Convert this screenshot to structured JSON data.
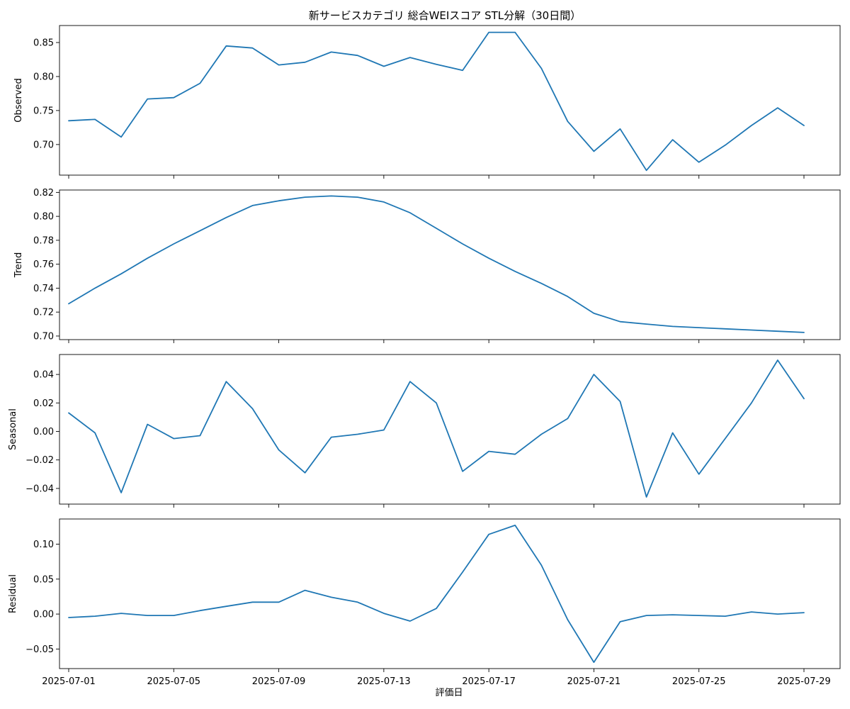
{
  "chart_data": {
    "type": "line",
    "title": "新サービスカテゴリ 総合WEIスコア STL分解（30日間）",
    "xlabel": "評価日",
    "color": "#1f77b4",
    "x": [
      "2025-07-01",
      "2025-07-02",
      "2025-07-03",
      "2025-07-04",
      "2025-07-05",
      "2025-07-06",
      "2025-07-07",
      "2025-07-08",
      "2025-07-09",
      "2025-07-10",
      "2025-07-11",
      "2025-07-12",
      "2025-07-13",
      "2025-07-14",
      "2025-07-15",
      "2025-07-16",
      "2025-07-17",
      "2025-07-18",
      "2025-07-19",
      "2025-07-20",
      "2025-07-21",
      "2025-07-22",
      "2025-07-23",
      "2025-07-24",
      "2025-07-25",
      "2025-07-26",
      "2025-07-27",
      "2025-07-28",
      "2025-07-29"
    ],
    "x_tick_labels": [
      "2025-07-01",
      "2025-07-05",
      "2025-07-09",
      "2025-07-13",
      "2025-07-17",
      "2025-07-21",
      "2025-07-25",
      "2025-07-29"
    ],
    "panels": [
      {
        "ylabel": "Observed",
        "ylim": [
          0.655,
          0.875
        ],
        "yticks": [
          0.7,
          0.75,
          0.8,
          0.85
        ],
        "ytick_labels": [
          "0.70",
          "0.75",
          "0.80",
          "0.85"
        ],
        "values": [
          0.735,
          0.737,
          0.711,
          0.767,
          0.769,
          0.79,
          0.845,
          0.842,
          0.817,
          0.821,
          0.836,
          0.831,
          0.815,
          0.828,
          0.818,
          0.809,
          0.865,
          0.865,
          0.812,
          0.734,
          0.69,
          0.723,
          0.662,
          0.707,
          0.674,
          0.699,
          0.728,
          0.754,
          0.728
        ]
      },
      {
        "ylabel": "Trend",
        "ylim": [
          0.697,
          0.822
        ],
        "yticks": [
          0.7,
          0.72,
          0.74,
          0.76,
          0.78,
          0.8,
          0.82
        ],
        "ytick_labels": [
          "0.70",
          "0.72",
          "0.74",
          "0.76",
          "0.78",
          "0.80",
          "0.82"
        ],
        "values": [
          0.727,
          0.74,
          0.752,
          0.765,
          0.777,
          0.788,
          0.799,
          0.809,
          0.813,
          0.816,
          0.817,
          0.816,
          0.812,
          0.803,
          0.79,
          0.777,
          0.765,
          0.754,
          0.744,
          0.733,
          0.719,
          0.712,
          0.71,
          0.708,
          0.707,
          0.706,
          0.705,
          0.704,
          0.703
        ]
      },
      {
        "ylabel": "Seasonal",
        "ylim": [
          -0.051,
          0.054
        ],
        "yticks": [
          -0.04,
          -0.02,
          0.0,
          0.02,
          0.04
        ],
        "ytick_labels": [
          "−0.04",
          "−0.02",
          "0.00",
          "0.02",
          "0.04"
        ],
        "values": [
          0.013,
          -0.001,
          -0.043,
          0.005,
          -0.005,
          -0.003,
          0.035,
          0.016,
          -0.013,
          -0.029,
          -0.004,
          -0.002,
          0.001,
          0.035,
          0.02,
          -0.028,
          -0.014,
          -0.016,
          -0.002,
          0.009,
          0.04,
          0.021,
          -0.046,
          -0.001,
          -0.03,
          -0.005,
          0.02,
          0.05,
          0.023
        ]
      },
      {
        "ylabel": "Residual",
        "ylim": [
          -0.078,
          0.136
        ],
        "yticks": [
          -0.05,
          0.0,
          0.05,
          0.1
        ],
        "ytick_labels": [
          "−0.05",
          "0.00",
          "0.05",
          "0.10"
        ],
        "values": [
          -0.005,
          -0.003,
          0.001,
          -0.002,
          -0.002,
          0.005,
          0.011,
          0.017,
          0.017,
          0.034,
          0.024,
          0.017,
          0.001,
          -0.01,
          0.008,
          0.06,
          0.114,
          0.127,
          0.07,
          -0.008,
          -0.069,
          -0.011,
          -0.002,
          -0.001,
          -0.002,
          -0.003,
          0.003,
          0.0,
          0.002
        ]
      }
    ]
  }
}
